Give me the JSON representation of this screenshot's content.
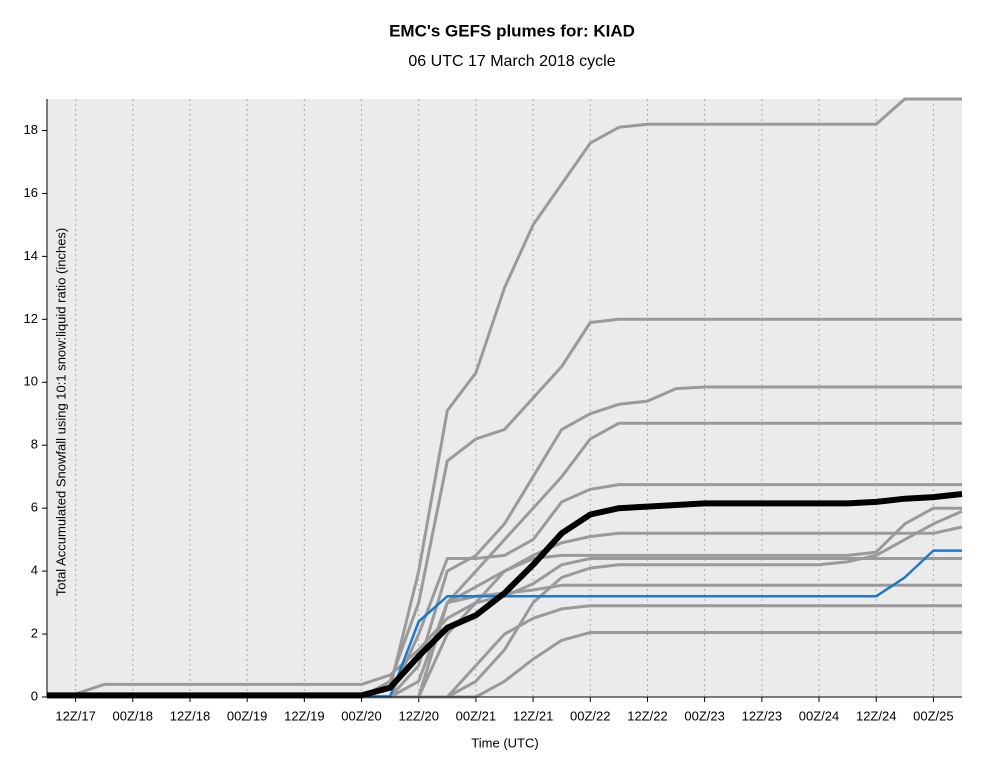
{
  "chart_data": {
    "type": "line",
    "title": "EMC's GEFS plumes for: KIAD",
    "subtitle": "06 UTC 17 March 2018 cycle",
    "xlabel": "Time (UTC)",
    "ylabel": "Total Accumulated Snowfall using 10:1 snow:liquid ratio (inches)",
    "categories": [
      null,
      "12Z/17",
      null,
      "00Z/18",
      null,
      "12Z/18",
      null,
      "00Z/19",
      null,
      "12Z/19",
      null,
      "00Z/20",
      null,
      "12Z/20",
      null,
      "00Z/21",
      null,
      "12Z/21",
      null,
      "00Z/22",
      null,
      "12Z/22",
      null,
      "00Z/23",
      null,
      "12Z/23",
      null,
      "00Z/24",
      null,
      "12Z/24",
      null,
      "00Z/25",
      null
    ],
    "ylim": [
      0,
      19
    ],
    "yticks": [
      0,
      2,
      4,
      6,
      8,
      10,
      12,
      14,
      16,
      18
    ],
    "xgrid": true,
    "series": [
      {
        "color": "#9a9a9a",
        "width": 3,
        "values": [
          0,
          0,
          0,
          0,
          0,
          0,
          0,
          0,
          0,
          0,
          0,
          0,
          0.3,
          4,
          9.1,
          10.3,
          13,
          15,
          16.3,
          17.6,
          18.1,
          18.2,
          18.2,
          18.2,
          18.2,
          18.2,
          18.2,
          18.2,
          18.2,
          18.2,
          19,
          19,
          19
        ]
      },
      {
        "color": "#9a9a9a",
        "width": 3,
        "values": [
          0,
          0,
          0,
          0,
          0,
          0,
          0,
          0,
          0,
          0,
          0,
          0,
          0.5,
          3,
          7.5,
          8.2,
          8.5,
          9.5,
          10.5,
          11.9,
          12,
          12,
          12,
          12,
          12,
          12,
          12,
          12,
          12,
          12,
          12,
          12,
          12
        ]
      },
      {
        "color": "#9a9a9a",
        "width": 3,
        "values": [
          0,
          0,
          0,
          0,
          0,
          0,
          0,
          0,
          0,
          0,
          0,
          0,
          0,
          1,
          4,
          4.5,
          5.5,
          7,
          8.5,
          9,
          9.3,
          9.4,
          9.8,
          9.85,
          9.85,
          9.85,
          9.85,
          9.85,
          9.85,
          9.85,
          9.85,
          9.85,
          9.85
        ]
      },
      {
        "color": "#9a9a9a",
        "width": 3,
        "values": [
          0,
          0,
          0,
          0,
          0,
          0,
          0,
          0,
          0,
          0,
          0,
          0,
          0,
          0.5,
          3,
          4,
          5,
          6,
          7,
          8.2,
          8.7,
          8.7,
          8.7,
          8.7,
          8.7,
          8.7,
          8.7,
          8.7,
          8.7,
          8.7,
          8.7,
          8.7,
          8.7
        ]
      },
      {
        "color": "#9a9a9a",
        "width": 3,
        "values": [
          0,
          0,
          0,
          0,
          0,
          0,
          0,
          0,
          0,
          0,
          0,
          0,
          0,
          2,
          4.4,
          4.4,
          4.5,
          5,
          6.2,
          6.6,
          6.75,
          6.75,
          6.75,
          6.75,
          6.75,
          6.75,
          6.75,
          6.75,
          6.75,
          6.75,
          6.75,
          6.75,
          6.75
        ]
      },
      {
        "color": "#9a9a9a",
        "width": 3,
        "values": [
          0,
          0,
          0,
          0,
          0,
          0,
          0,
          0,
          0,
          0,
          0,
          0,
          0,
          0,
          2,
          3,
          4,
          4.4,
          4.5,
          4.5,
          4.5,
          4.5,
          4.5,
          4.5,
          4.5,
          4.5,
          4.5,
          4.5,
          4.5,
          4.6,
          5.5,
          6,
          6
        ]
      },
      {
        "color": "#9a9a9a",
        "width": 3,
        "values": [
          0,
          0,
          0,
          0,
          0,
          0,
          0,
          0,
          0,
          0,
          0,
          0,
          0,
          0,
          3,
          3.2,
          3.3,
          3.4,
          3.55,
          3.55,
          3.55,
          3.55,
          3.55,
          3.55,
          3.55,
          3.55,
          3.55,
          3.55,
          3.55,
          3.55,
          3.55,
          3.55,
          3.55
        ]
      },
      {
        "color": "#9a9a9a",
        "width": 3,
        "values": [
          0,
          0,
          0,
          0,
          0,
          0,
          0,
          0,
          0,
          0,
          0,
          0,
          0,
          0,
          0,
          1,
          2,
          2.5,
          2.8,
          2.9,
          2.9,
          2.9,
          2.9,
          2.9,
          2.9,
          2.9,
          2.9,
          2.9,
          2.9,
          2.9,
          2.9,
          2.9,
          2.9
        ]
      },
      {
        "color": "#9a9a9a",
        "width": 3,
        "values": [
          0,
          0,
          0,
          0,
          0,
          0,
          0,
          0,
          0,
          0,
          0,
          0,
          0,
          0,
          0,
          0,
          0.5,
          1.2,
          1.8,
          2.05,
          2.05,
          2.05,
          2.05,
          2.05,
          2.05,
          2.05,
          2.05,
          2.05,
          2.05,
          2.05,
          2.05,
          2.05,
          2.05
        ]
      },
      {
        "color": "#9a9a9a",
        "width": 3,
        "values": [
          0,
          0,
          0,
          0,
          0,
          0,
          0,
          0,
          0,
          0,
          0,
          0,
          0,
          0,
          3,
          3.5,
          4,
          4.5,
          4.9,
          5.1,
          5.2,
          5.2,
          5.2,
          5.2,
          5.2,
          5.2,
          5.2,
          5.2,
          5.2,
          5.2,
          5.2,
          5.2,
          5.4
        ]
      },
      {
        "color": "#9a9a9a",
        "width": 3,
        "values": [
          0,
          0.1,
          0.4,
          0.4,
          0.4,
          0.4,
          0.4,
          0.4,
          0.4,
          0.4,
          0.4,
          0.4,
          0.7,
          1.5,
          2.5,
          3,
          3.2,
          3.6,
          4.2,
          4.4,
          4.4,
          4.4,
          4.4,
          4.4,
          4.4,
          4.4,
          4.4,
          4.4,
          4.4,
          4.4,
          4.4,
          4.4,
          4.4
        ]
      },
      {
        "color": "#9a9a9a",
        "width": 3,
        "values": [
          0,
          0,
          0,
          0,
          0,
          0,
          0,
          0,
          0,
          0,
          0,
          0,
          0,
          0,
          0,
          0.5,
          1.5,
          3,
          3.8,
          4.1,
          4.2,
          4.2,
          4.2,
          4.2,
          4.2,
          4.2,
          4.2,
          4.2,
          4.3,
          4.5,
          5,
          5.5,
          5.9
        ]
      },
      {
        "color": "#1f78c8",
        "width": 2.5,
        "values": [
          0.02,
          0.02,
          0.02,
          0.02,
          0.02,
          0.02,
          0.02,
          0.02,
          0.02,
          0.02,
          0.02,
          0.02,
          0.02,
          2.4,
          3.2,
          3.2,
          3.2,
          3.2,
          3.2,
          3.2,
          3.2,
          3.2,
          3.2,
          3.2,
          3.2,
          3.2,
          3.2,
          3.2,
          3.2,
          3.2,
          3.8,
          4.65,
          4.65
        ]
      },
      {
        "color": "#000000",
        "width": 6,
        "values": [
          0.05,
          0.05,
          0.05,
          0.05,
          0.05,
          0.05,
          0.05,
          0.05,
          0.05,
          0.05,
          0.05,
          0.05,
          0.3,
          1.3,
          2.2,
          2.6,
          3.3,
          4.2,
          5.2,
          5.8,
          6,
          6.05,
          6.1,
          6.15,
          6.15,
          6.15,
          6.15,
          6.15,
          6.15,
          6.2,
          6.3,
          6.35,
          6.45
        ]
      }
    ]
  }
}
